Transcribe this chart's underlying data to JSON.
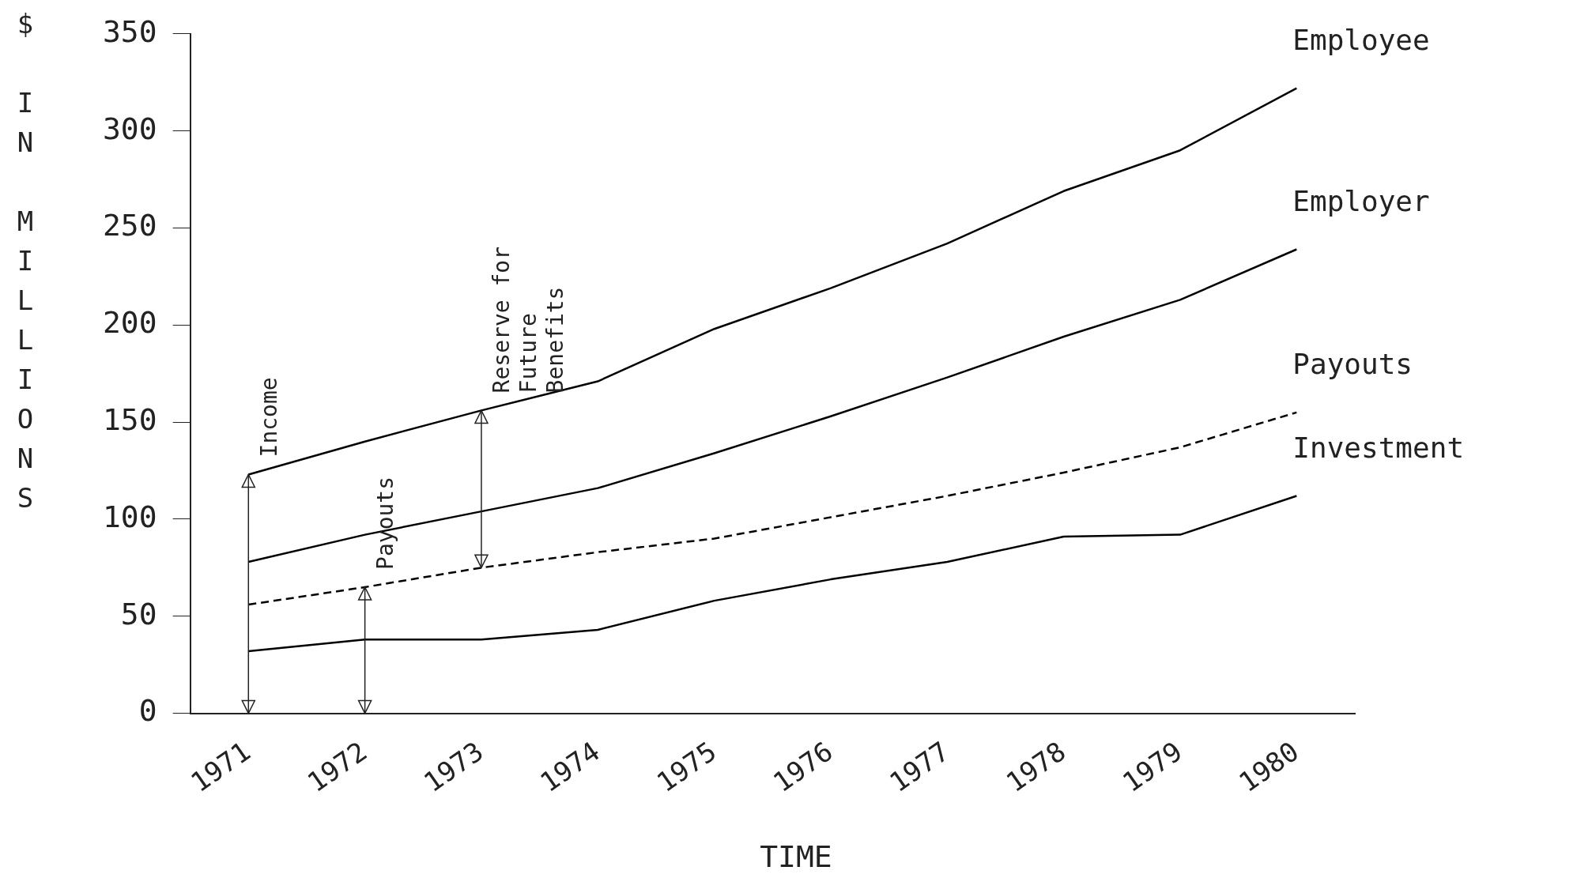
{
  "chart_data": {
    "type": "line",
    "xlabel": "TIME",
    "ylabel": "$ IN MILLIONS",
    "categories": [
      "1971",
      "1972",
      "1973",
      "1974",
      "1975",
      "1976",
      "1977",
      "1978",
      "1979",
      "1980"
    ],
    "series": [
      {
        "name": "Employee",
        "color": "#000000",
        "line_style": "solid",
        "values": [
          123,
          140,
          156,
          171,
          198,
          219,
          242,
          269,
          290,
          322
        ]
      },
      {
        "name": "Employer",
        "color": "#000000",
        "line_style": "solid",
        "values": [
          78,
          92,
          104,
          116,
          134,
          153,
          173,
          194,
          213,
          239
        ]
      },
      {
        "name": "Payouts",
        "color": "#000000",
        "line_style": "dashed",
        "values": [
          56,
          65,
          75,
          83,
          90,
          101,
          112,
          124,
          137,
          155
        ]
      },
      {
        "name": "Investment",
        "color": "#000000",
        "line_style": "solid",
        "values": [
          32,
          38,
          38,
          43,
          58,
          69,
          78,
          91,
          92,
          112
        ]
      }
    ],
    "ylim": [
      0,
      350
    ],
    "yticks": [
      0,
      50,
      100,
      150,
      200,
      250,
      300,
      350
    ],
    "grid": false,
    "legend": false,
    "marker": "none",
    "annotations": [
      {
        "text": "Income",
        "x": "1971",
        "y": 123
      },
      {
        "text": "Payouts",
        "x": "1972",
        "y": 65
      },
      {
        "text": "Reserve for\nFuture\nBenefits",
        "x": "1973",
        "y": 156
      }
    ]
  }
}
